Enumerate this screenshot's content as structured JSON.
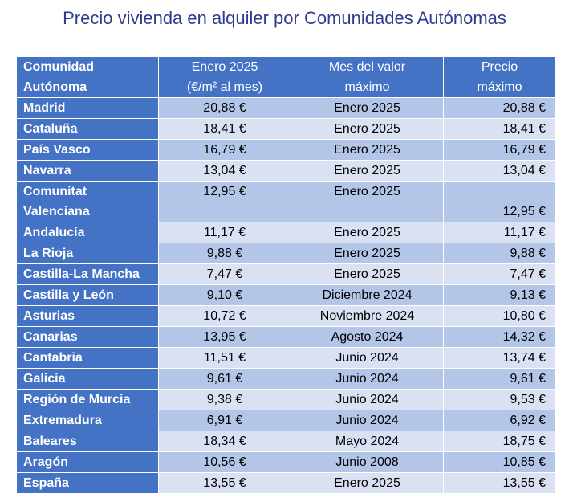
{
  "header": {
    "title": "Precio vivienda en alquiler por Comunidades Autónomas"
  },
  "table": {
    "columns": [
      [
        "Comunidad",
        "Autónoma"
      ],
      [
        "Enero 2025",
        "(€/m² al mes)"
      ],
      [
        "Mes del valor",
        "máximo"
      ],
      [
        "Precio",
        "máximo"
      ]
    ],
    "rows": [
      {
        "name": [
          "Madrid"
        ],
        "jan2025": "20,88 €",
        "month": "Enero 2025",
        "max": "20,88 €"
      },
      {
        "name": [
          "Cataluña"
        ],
        "jan2025": "18,41 €",
        "month": "Enero 2025",
        "max": "18,41 €"
      },
      {
        "name": [
          "País Vasco"
        ],
        "jan2025": "16,79 €",
        "month": "Enero 2025",
        "max": "16,79 €"
      },
      {
        "name": [
          "Navarra"
        ],
        "jan2025": "13,04 €",
        "month": "Enero 2025",
        "max": "13,04 €"
      },
      {
        "name": [
          "Comunitat",
          "Valenciana"
        ],
        "jan2025": "12,95 €",
        "month": "Enero 2025",
        "max": "12,95 €"
      },
      {
        "name": [
          "Andalucía"
        ],
        "jan2025": "11,17 €",
        "month": "Enero 2025",
        "max": "11,17 €"
      },
      {
        "name": [
          "La Rioja"
        ],
        "jan2025": "9,88 €",
        "month": "Enero 2025",
        "max": "9,88 €"
      },
      {
        "name": [
          "Castilla-La Mancha"
        ],
        "jan2025": "7,47 €",
        "month": "Enero 2025",
        "max": "7,47 €"
      },
      {
        "name": [
          "Castilla y León"
        ],
        "jan2025": "9,10 €",
        "month": "Diciembre 2024",
        "max": "9,13 €"
      },
      {
        "name": [
          "Asturias"
        ],
        "jan2025": "10,72 €",
        "month": "Noviembre 2024",
        "max": "10,80 €"
      },
      {
        "name": [
          "Canarias"
        ],
        "jan2025": "13,95 €",
        "month": "Agosto 2024",
        "max": "14,32 €"
      },
      {
        "name": [
          "Cantabria"
        ],
        "jan2025": "11,51 €",
        "month": "Junio 2024",
        "max": "13,74 €"
      },
      {
        "name": [
          "Galicia"
        ],
        "jan2025": "9,61 €",
        "month": "Junio 2024",
        "max": "9,61 €"
      },
      {
        "name": [
          "Región de Murcia"
        ],
        "jan2025": "9,38 €",
        "month": "Junio 2024",
        "max": "9,53 €"
      },
      {
        "name": [
          "Extremadura"
        ],
        "jan2025": "6,91 €",
        "month": "Junio 2024",
        "max": "6,92 €"
      },
      {
        "name": [
          "Baleares"
        ],
        "jan2025": "18,34 €",
        "month": "Mayo 2024",
        "max": "18,75 €"
      },
      {
        "name": [
          "Aragón"
        ],
        "jan2025": "10,56 €",
        "month": "Junio 2008",
        "max": "10,85 €"
      },
      {
        "name": [
          "España"
        ],
        "jan2025": "13,55 €",
        "month": "Enero 2025",
        "max": "13,55 €"
      }
    ]
  }
}
